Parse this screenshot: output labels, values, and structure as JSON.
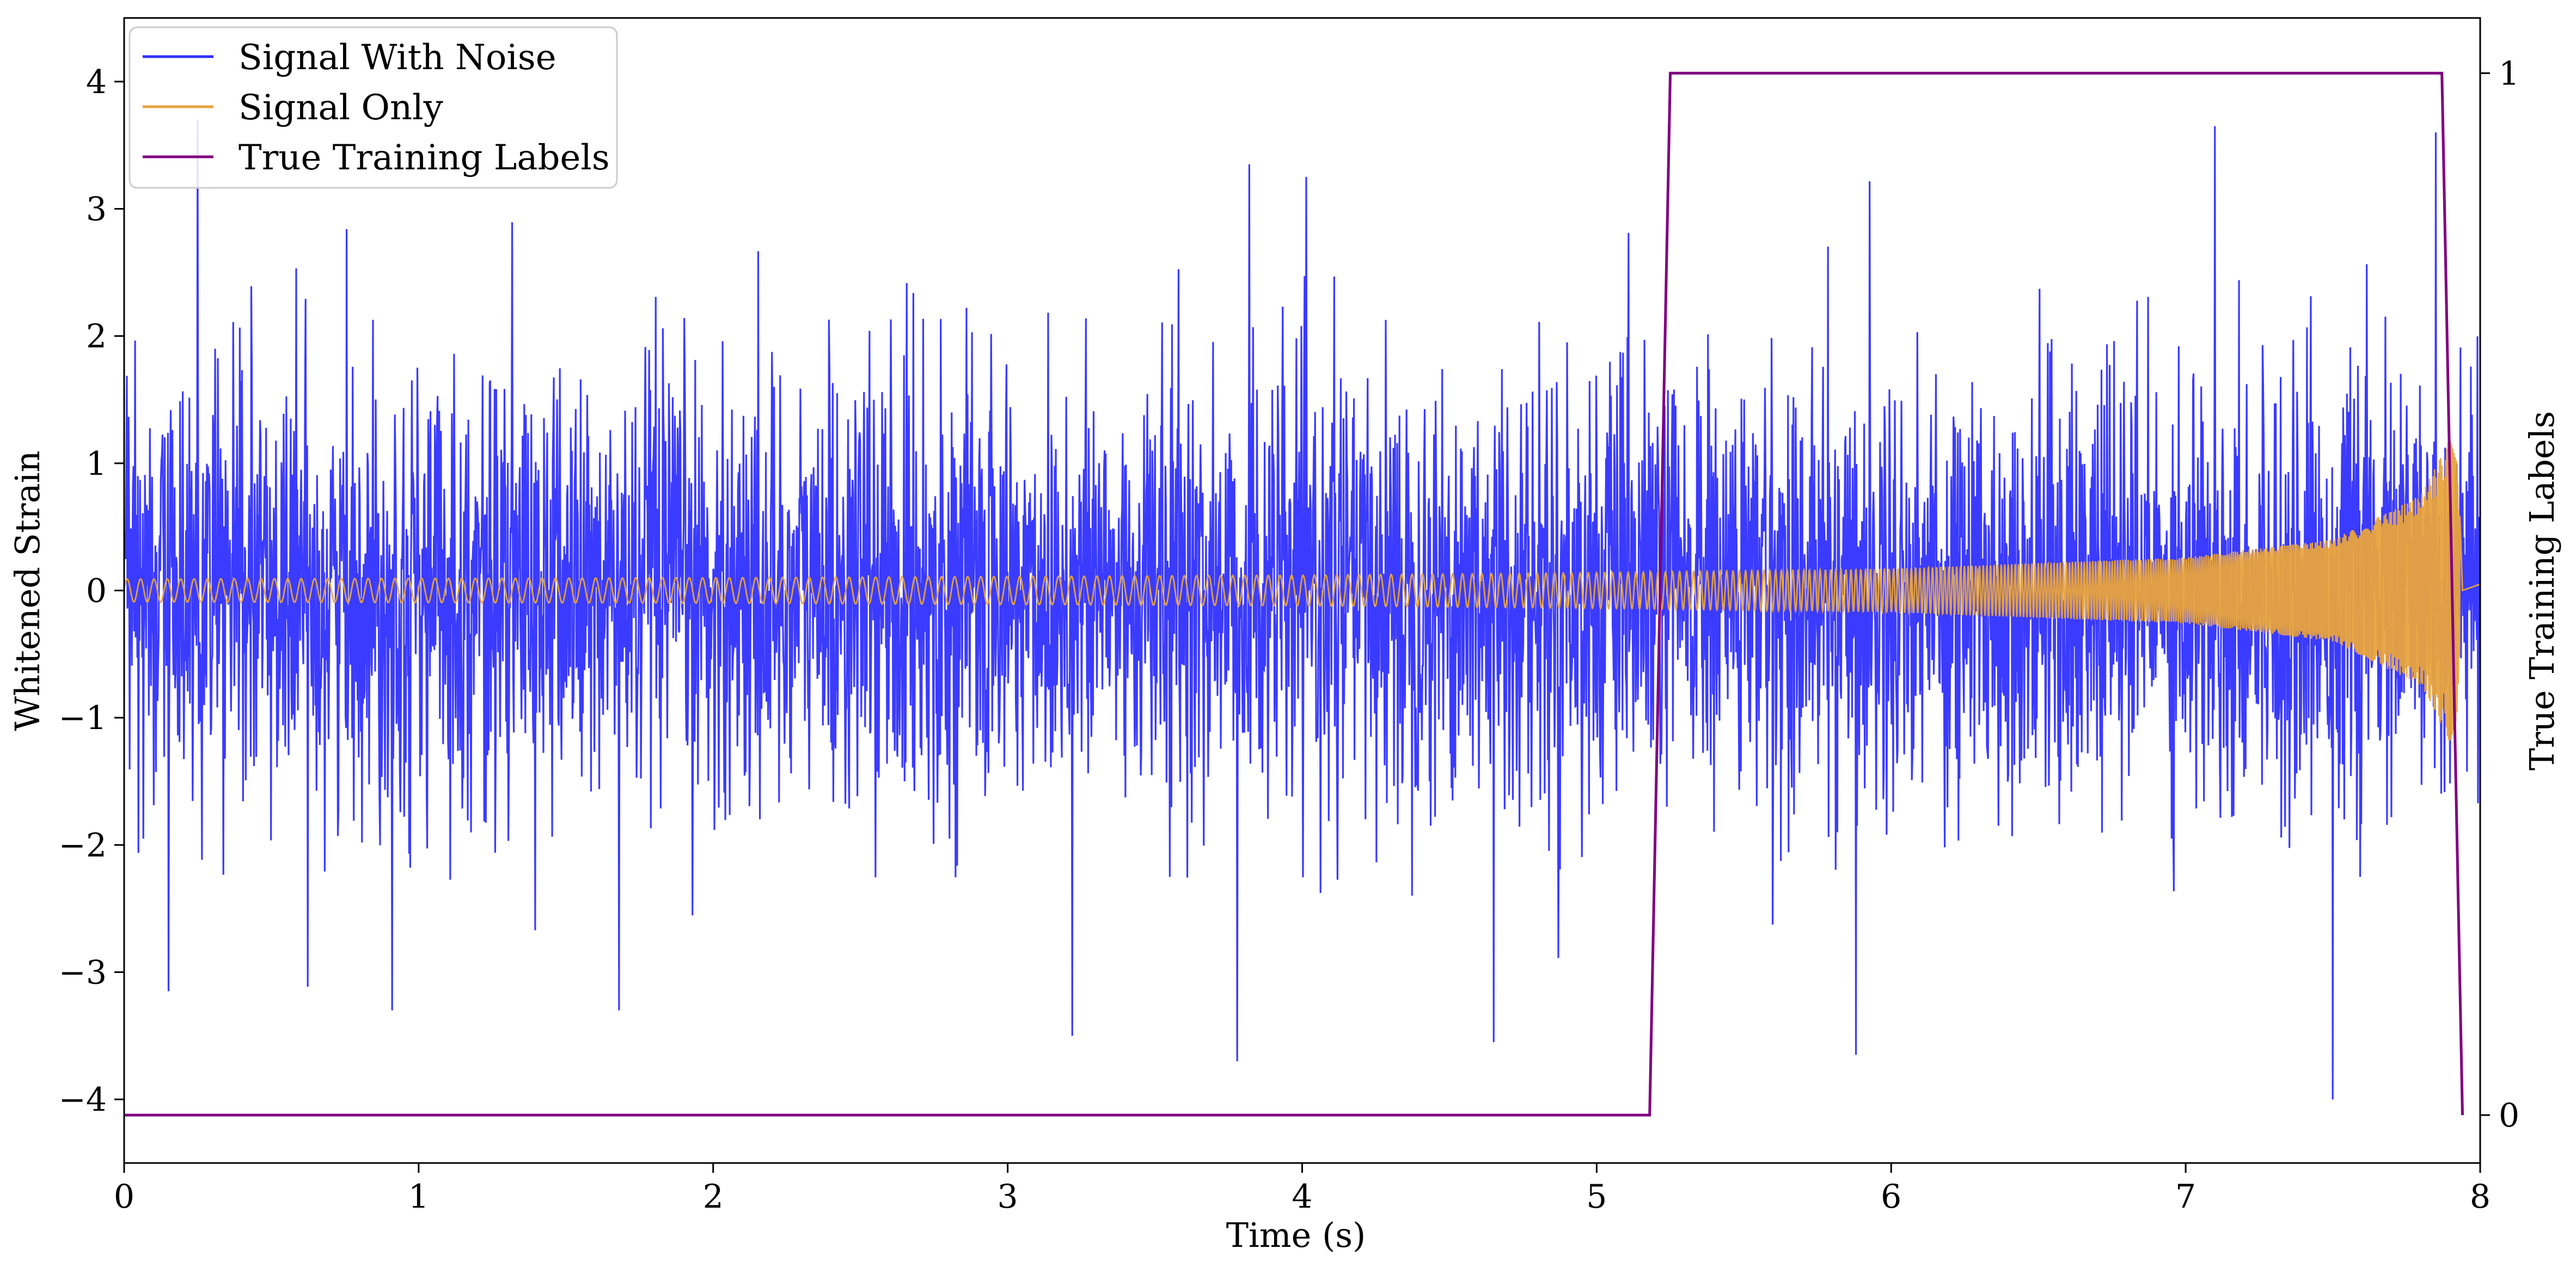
{
  "chart_data": {
    "type": "line",
    "xlabel": "Time (s)",
    "ylabel": "Whitened Strain",
    "y2label": "True Training Labels",
    "xlim": [
      0,
      8
    ],
    "ylim": [
      -4.5,
      4.5
    ],
    "y2lim": [
      -0.046,
      1.053
    ],
    "x_ticks": [
      0,
      1,
      2,
      3,
      4,
      5,
      6,
      7,
      8
    ],
    "x_tick_labels": [
      "0",
      "1",
      "2",
      "3",
      "4",
      "5",
      "6",
      "7",
      "8"
    ],
    "y_ticks": [
      4,
      3,
      2,
      1,
      0,
      -1,
      -2,
      -3,
      -4
    ],
    "y_tick_labels": [
      "4",
      "3",
      "2",
      "1",
      "0",
      "−1",
      "−2",
      "−3",
      "−4"
    ],
    "y2_ticks": [
      1,
      0
    ],
    "y2_tick_labels": [
      "1",
      "0"
    ],
    "grid": false,
    "legend_position": "upper-left",
    "series": [
      {
        "name": "Signal With Noise",
        "color": "#3030ff",
        "axis": "left",
        "description_stats": {
          "std": 0.85,
          "min": -4.0,
          "max": 3.7
        },
        "highlighted_peaks": [
          {
            "x": 0.25,
            "y": 3.7
          },
          {
            "x": 0.15,
            "y": -3.15
          },
          {
            "x": 0.91,
            "y": -3.3
          },
          {
            "x": 1.68,
            "y": -3.3
          },
          {
            "x": 3.22,
            "y": -3.5
          },
          {
            "x": 3.78,
            "y": -3.7
          },
          {
            "x": 3.82,
            "y": 3.35
          },
          {
            "x": 4.65,
            "y": -3.55
          },
          {
            "x": 5.88,
            "y": -3.65
          },
          {
            "x": 7.1,
            "y": 3.65
          },
          {
            "x": 7.5,
            "y": -4.0
          },
          {
            "x": 7.85,
            "y": 3.6
          }
        ]
      },
      {
        "name": "Signal Only",
        "color": "#e8a33d",
        "axis": "left",
        "amplitude_envelope": [
          {
            "x": 0.0,
            "y": 0.09
          },
          {
            "x": 2.0,
            "y": 0.1
          },
          {
            "x": 4.0,
            "y": 0.12
          },
          {
            "x": 5.0,
            "y": 0.14
          },
          {
            "x": 6.0,
            "y": 0.17
          },
          {
            "x": 7.0,
            "y": 0.26
          },
          {
            "x": 7.5,
            "y": 0.4
          },
          {
            "x": 7.8,
            "y": 0.75
          },
          {
            "x": 7.92,
            "y": 1.3
          },
          {
            "x": 7.94,
            "y": 0.0
          },
          {
            "x": 8.0,
            "y": 0.05
          }
        ],
        "frequency_start_hz": 22,
        "frequency_end_hz": 250
      },
      {
        "name": "True Training Labels",
        "color": "#800080",
        "axis": "right",
        "x": [
          0,
          5.18,
          5.25,
          7.87,
          7.94
        ],
        "y": [
          0,
          0,
          1,
          1,
          0
        ]
      }
    ]
  }
}
